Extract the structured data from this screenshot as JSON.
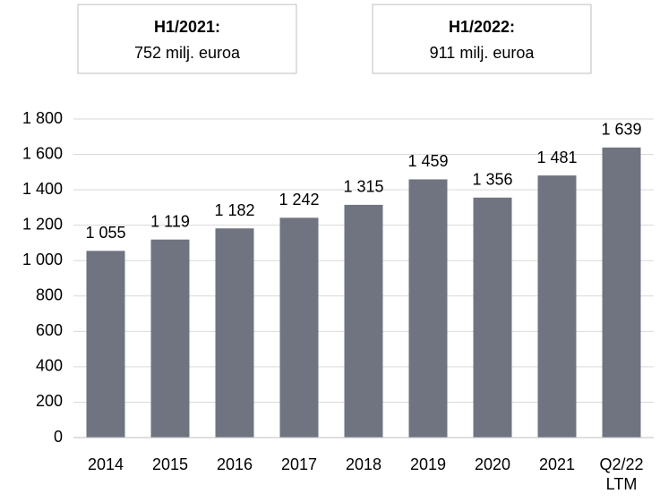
{
  "chart_data": {
    "type": "bar",
    "annotations": [
      {
        "title": "H1/2021:",
        "text": "752 milj. euroa"
      },
      {
        "title": "H1/2022:",
        "text": "911 milj. euroa"
      }
    ],
    "categories": [
      "2014",
      "2015",
      "2016",
      "2017",
      "2018",
      "2019",
      "2020",
      "2021",
      "Q2/22\nLTM"
    ],
    "values": [
      1055,
      1119,
      1182,
      1242,
      1315,
      1459,
      1356,
      1481,
      1639
    ],
    "value_labels": [
      "1 055",
      "1 119",
      "1 182",
      "1 242",
      "1 315",
      "1 459",
      "1 356",
      "1 481",
      "1 639"
    ],
    "color": "#6f7480",
    "ylim": [
      0,
      1800
    ],
    "yticks": [
      0,
      200,
      400,
      600,
      800,
      {
        "value": 1000,
        "label": "1 000"
      },
      {
        "value": 1200,
        "label": "1 200"
      },
      {
        "value": 1400,
        "label": "1 400"
      },
      {
        "value": 1600,
        "label": "1 600"
      },
      {
        "value": 1800,
        "label": "1 800"
      }
    ],
    "grid": true
  }
}
